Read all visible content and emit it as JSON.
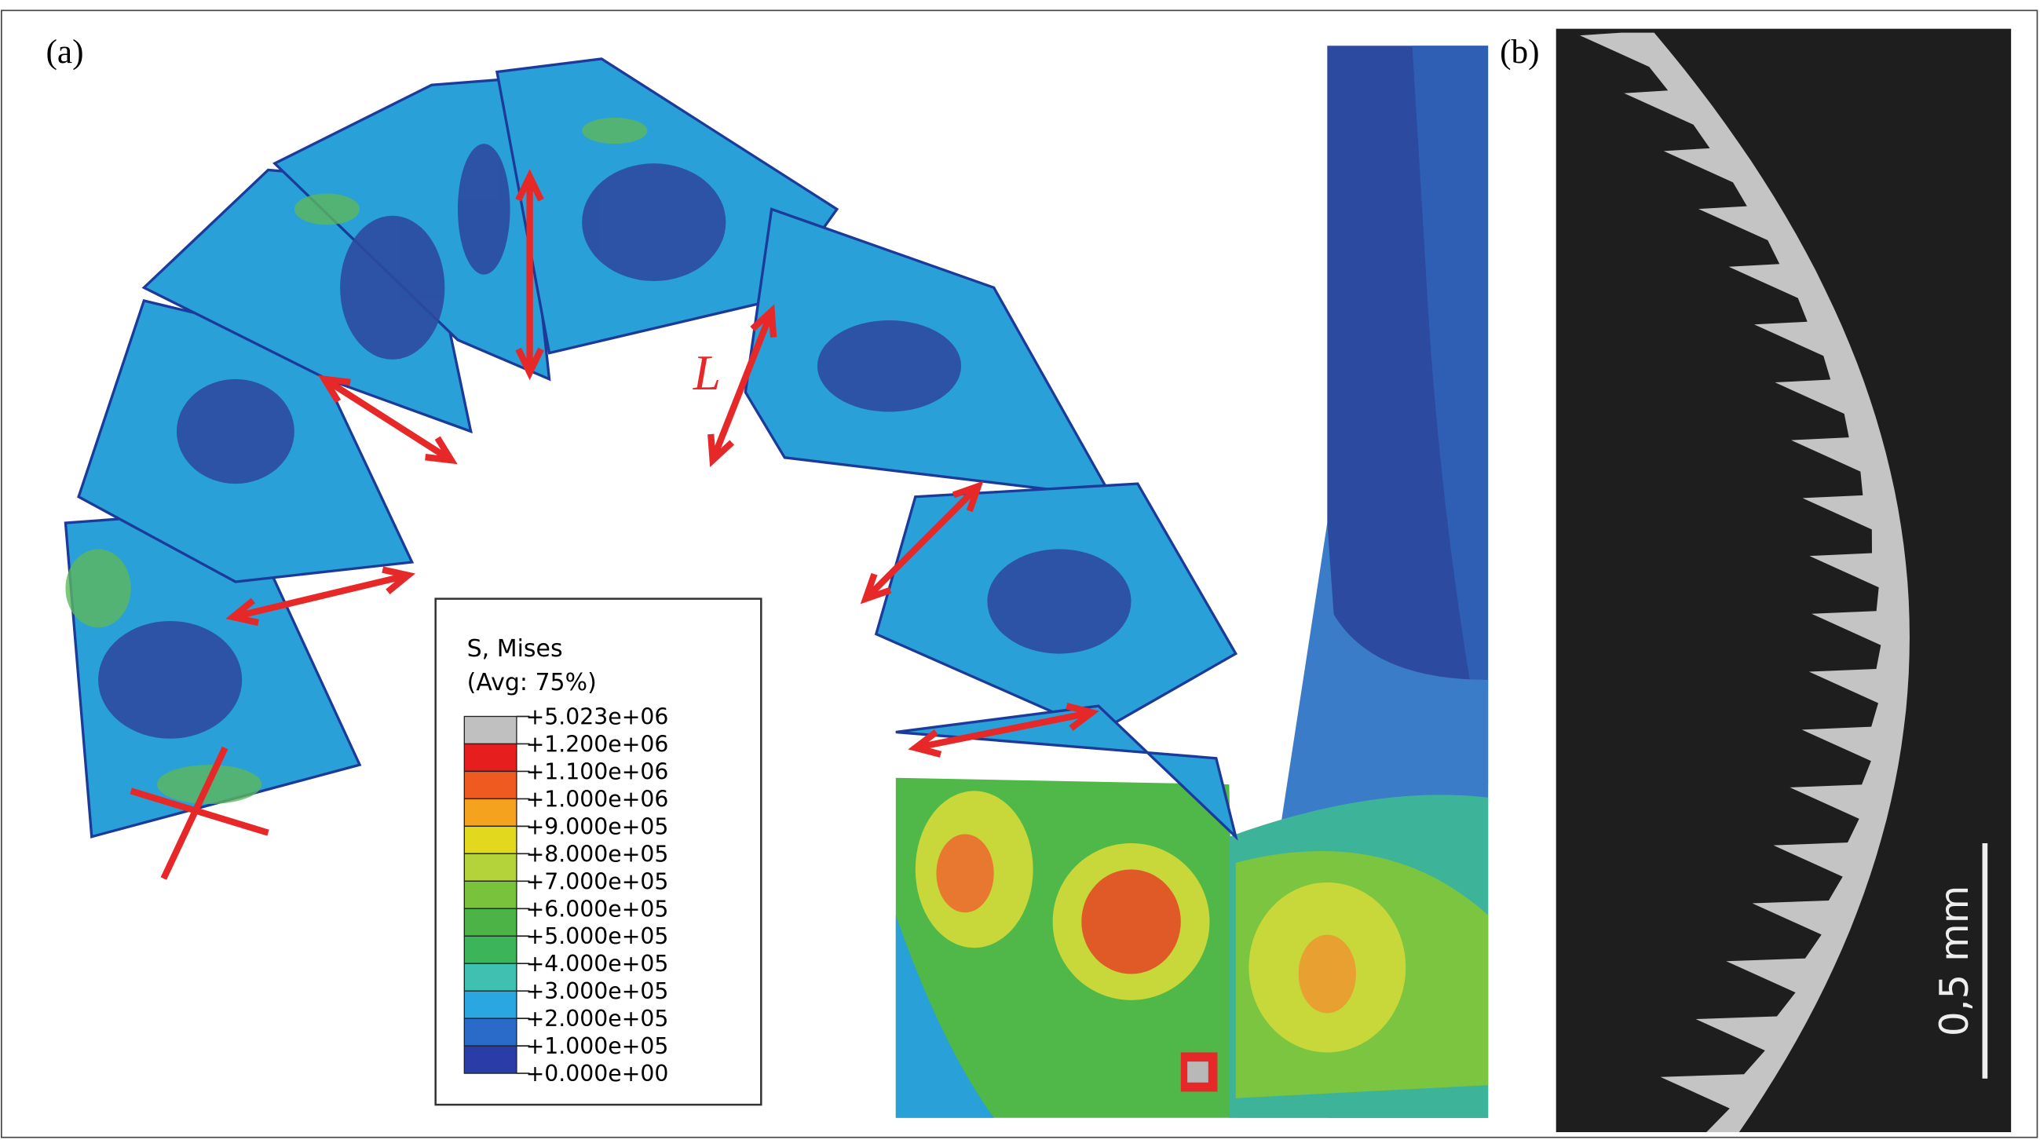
{
  "panels": {
    "a": {
      "label": "(a)",
      "length_label": "L"
    },
    "b": {
      "label": "(b)",
      "scale_bar": "0,5 mm"
    }
  },
  "legend": {
    "title": "S, Mises",
    "subtitle": "(Avg: 75%)",
    "levels": [
      "+5.023e+06",
      "+1.200e+06",
      "+1.100e+06",
      "+1.000e+06",
      "+9.000e+05",
      "+8.000e+05",
      "+7.000e+05",
      "+6.000e+05",
      "+5.000e+05",
      "+4.000e+05",
      "+3.000e+05",
      "+2.000e+05",
      "+1.000e+05",
      "+0.000e+00"
    ]
  }
}
